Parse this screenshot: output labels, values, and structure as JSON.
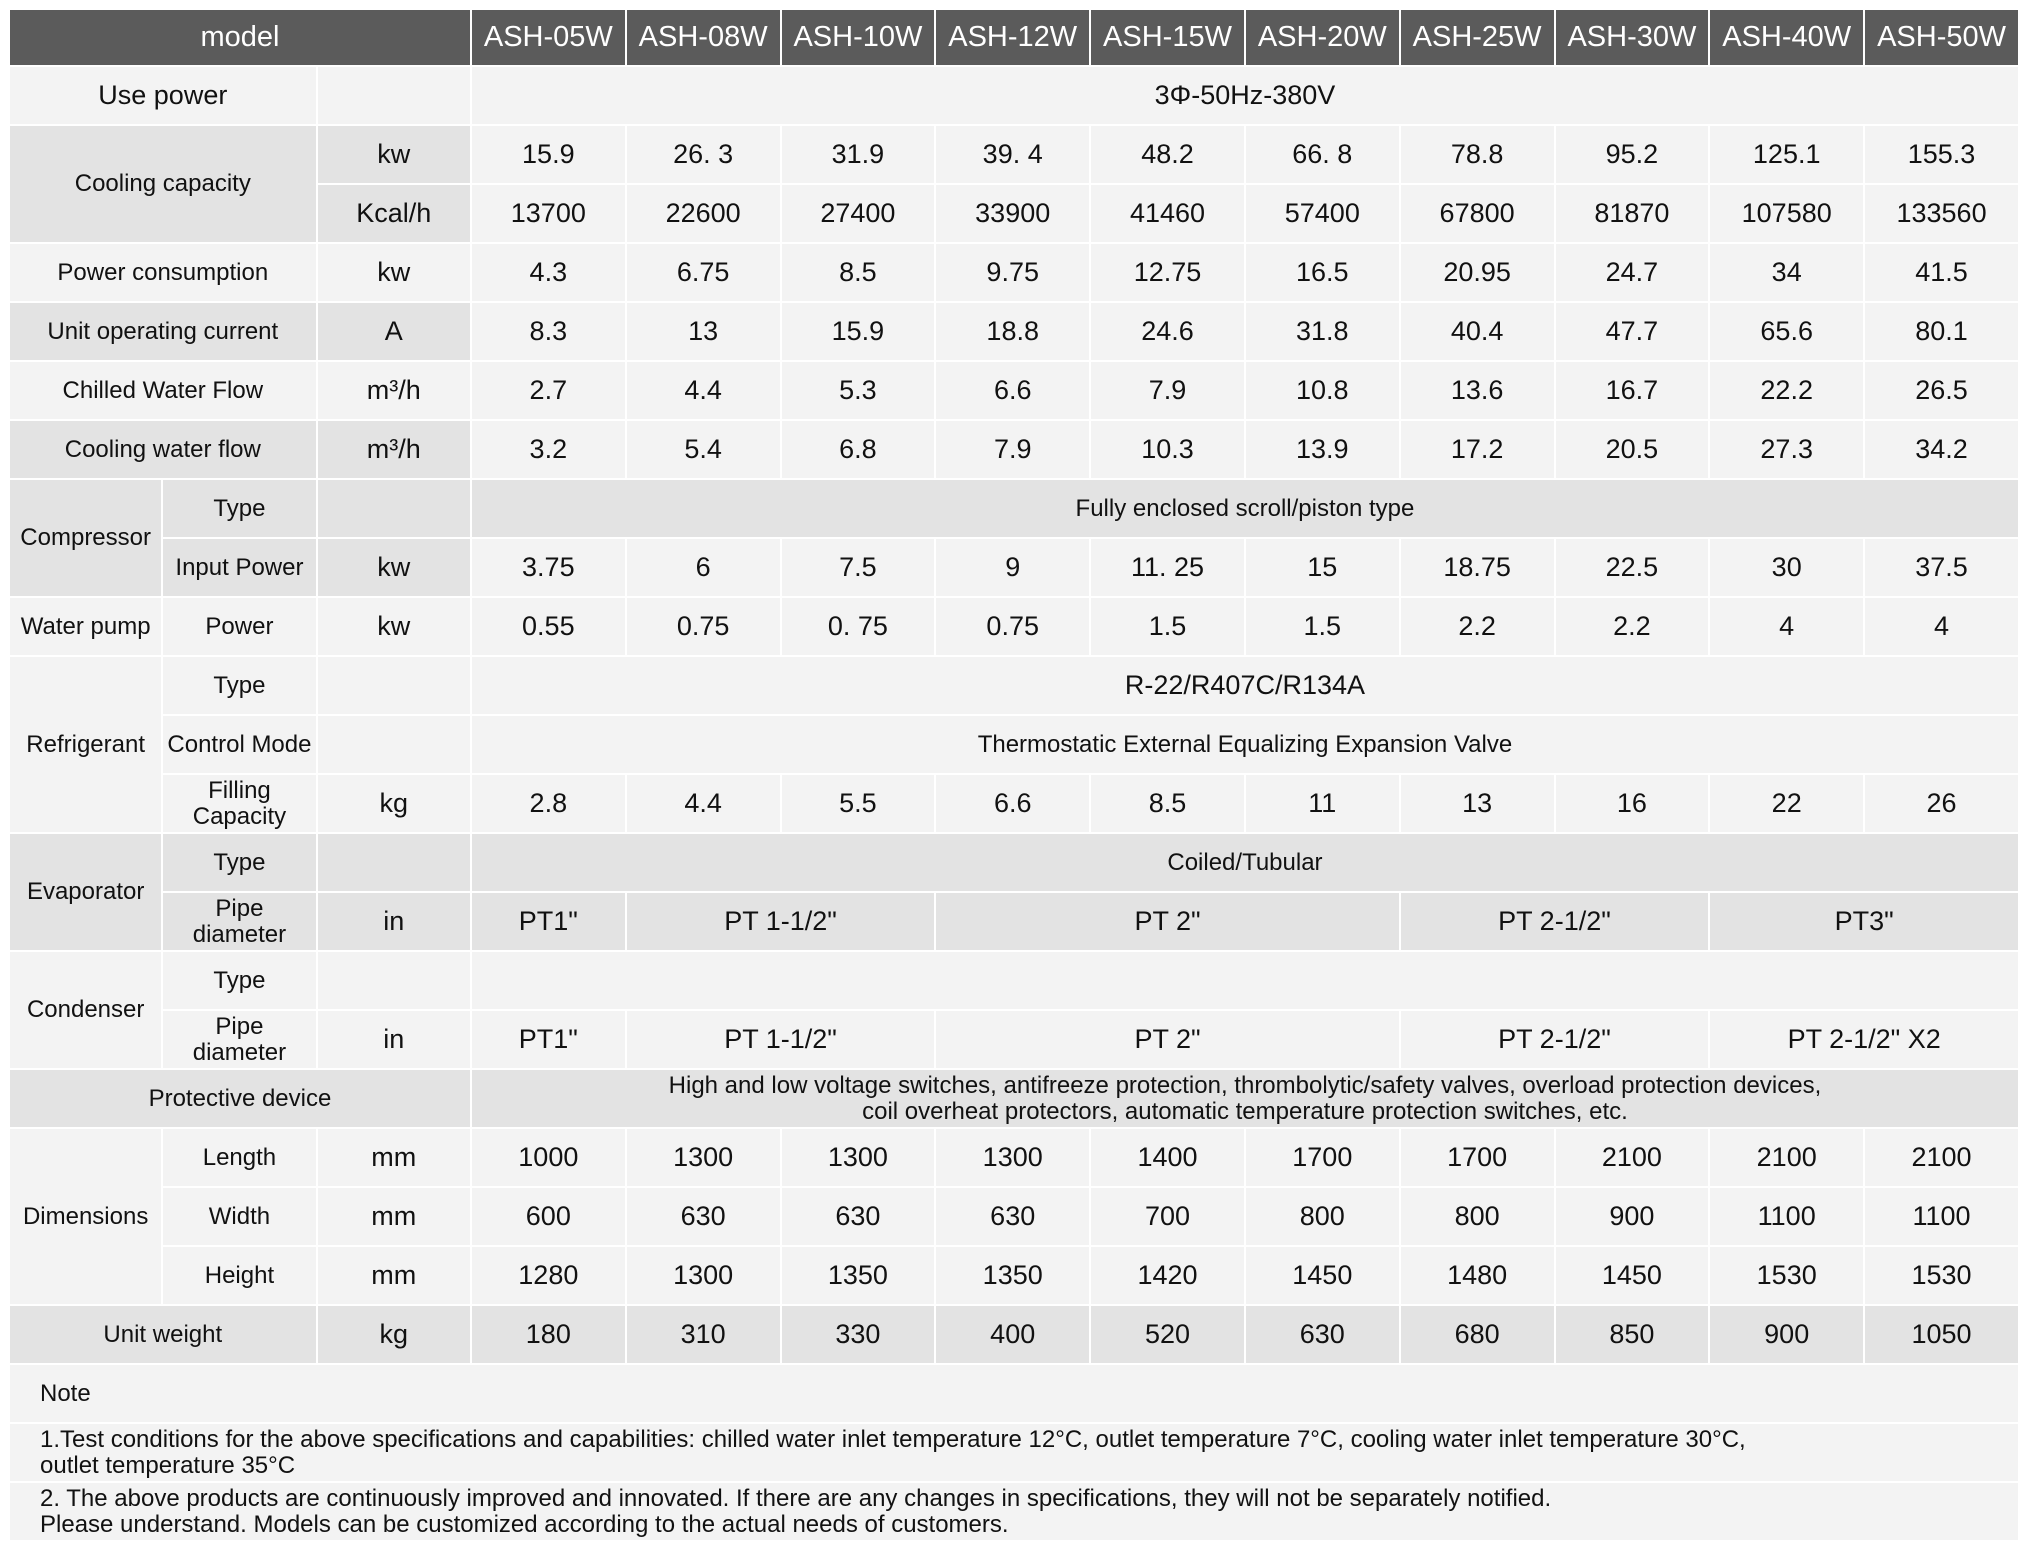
{
  "header": {
    "title": "model",
    "models": [
      "ASH-05W",
      "ASH-08W",
      "ASH-10W",
      "ASH-12W",
      "ASH-15W",
      "ASH-20W",
      "ASH-25W",
      "ASH-30W",
      "ASH-40W",
      "ASH-50W"
    ]
  },
  "use_power": {
    "label": "Use power",
    "value": "3Φ-50Hz-380V"
  },
  "cooling_capacity": {
    "label": "Cooling capacity",
    "rows": [
      {
        "unit": "kw",
        "values": [
          "15.9",
          "26. 3",
          "31.9",
          "39. 4",
          "48.2",
          "66. 8",
          "78.8",
          "95.2",
          "125.1",
          "155.3"
        ]
      },
      {
        "unit": "Kcal/h",
        "values": [
          "13700",
          "22600",
          "27400",
          "33900",
          "41460",
          "57400",
          "67800",
          "81870",
          "107580",
          "133560"
        ]
      }
    ]
  },
  "power_consumption": {
    "label": "Power consumption",
    "unit": "kw",
    "values": [
      "4.3",
      "6.75",
      "8.5",
      "9.75",
      "12.75",
      "16.5",
      "20.95",
      "24.7",
      "34",
      "41.5"
    ]
  },
  "operating_current": {
    "label": "Unit operating current",
    "unit": "A",
    "values": [
      "8.3",
      "13",
      "15.9",
      "18.8",
      "24.6",
      "31.8",
      "40.4",
      "47.7",
      "65.6",
      "80.1"
    ]
  },
  "chilled_water_flow": {
    "label": "Chilled Water Flow",
    "unit": "m³/h",
    "values": [
      "2.7",
      "4.4",
      "5.3",
      "6.6",
      "7.9",
      "10.8",
      "13.6",
      "16.7",
      "22.2",
      "26.5"
    ]
  },
  "cooling_water_flow": {
    "label": "Cooling water flow",
    "unit": "m³/h",
    "values": [
      "3.2",
      "5.4",
      "6.8",
      "7.9",
      "10.3",
      "13.9",
      "17.2",
      "20.5",
      "27.3",
      "34.2"
    ]
  },
  "compressor": {
    "label": "Compressor",
    "type_label": "Type",
    "type_value": "Fully enclosed scroll/piston type",
    "input_label": "Input Power",
    "unit": "kw",
    "values": [
      "3.75",
      "6",
      "7.5",
      "9",
      "11. 25",
      "15",
      "18.75",
      "22.5",
      "30",
      "37.5"
    ]
  },
  "water_pump": {
    "label": "Water pump",
    "power_label": "Power",
    "unit": "kw",
    "values": [
      "0.55",
      "0.75",
      "0. 75",
      "0.75",
      "1.5",
      "1.5",
      "2.2",
      "2.2",
      "4",
      "4"
    ]
  },
  "refrigerant": {
    "label": "Refrigerant",
    "type_label": "Type",
    "type_value": "R-22/R407C/R134A",
    "control_label": "Control Mode",
    "control_value": "Thermostatic External Equalizing Expansion Valve",
    "filling_label": "Filling Capacity",
    "unit": "kg",
    "values": [
      "2.8",
      "4.4",
      "5.5",
      "6.6",
      "8.5",
      "11",
      "13",
      "16",
      "22",
      "26"
    ]
  },
  "evaporator": {
    "label": "Evaporator",
    "type_label": "Type",
    "type_value": "Coiled/Tubular",
    "pipe_label": "Pipe diameter",
    "unit": "in",
    "values": [
      "PT1\"",
      "PT 1-1/2\"",
      "PT 2\"",
      "PT 2-1/2\"",
      "PT3\""
    ]
  },
  "condenser": {
    "label": "Condenser",
    "type_label": "Type",
    "pipe_label": "Pipe diameter",
    "unit": "in",
    "values": [
      "PT1\"",
      "PT 1-1/2\"",
      "PT 2\"",
      "PT 2-1/2\"",
      "PT 2-1/2\" X2"
    ]
  },
  "protective_device": {
    "label": "Protective device",
    "value": [
      "High and low voltage switches, antifreeze protection, thrombolytic/safety valves, overload protection devices,",
      "coil overheat protectors, automatic temperature protection switches, etc."
    ]
  },
  "dimensions": {
    "label": "Dimensions",
    "rows": [
      {
        "label": "Length",
        "unit": "mm",
        "values": [
          "1000",
          "1300",
          "1300",
          "1300",
          "1400",
          "1700",
          "1700",
          "2100",
          "2100",
          "2100"
        ]
      },
      {
        "label": "Width",
        "unit": "mm",
        "values": [
          "600",
          "630",
          "630",
          "630",
          "700",
          "800",
          "800",
          "900",
          "1100",
          "1100"
        ]
      },
      {
        "label": "Height",
        "unit": "mm",
        "values": [
          "1280",
          "1300",
          "1350",
          "1350",
          "1420",
          "1450",
          "1480",
          "1450",
          "1530",
          "1530"
        ]
      }
    ]
  },
  "unit_weight": {
    "label": "Unit weight",
    "unit": "kg",
    "values": [
      "180",
      "310",
      "330",
      "400",
      "520",
      "630",
      "680",
      "850",
      "900",
      "1050"
    ]
  },
  "notes": {
    "title": "Note",
    "items": [
      [
        "1.Test conditions for the above specifications and capabilities: chilled water inlet temperature 12°C, outlet temperature 7°C, cooling water inlet temperature 30°C,",
        "outlet temperature 35°C"
      ],
      [
        "2. The above products are continuously improved and innovated. If there are any changes in specifications, they will not be separately notified.",
        "Please understand. Models can be customized according to the actual needs of customers."
      ]
    ]
  }
}
